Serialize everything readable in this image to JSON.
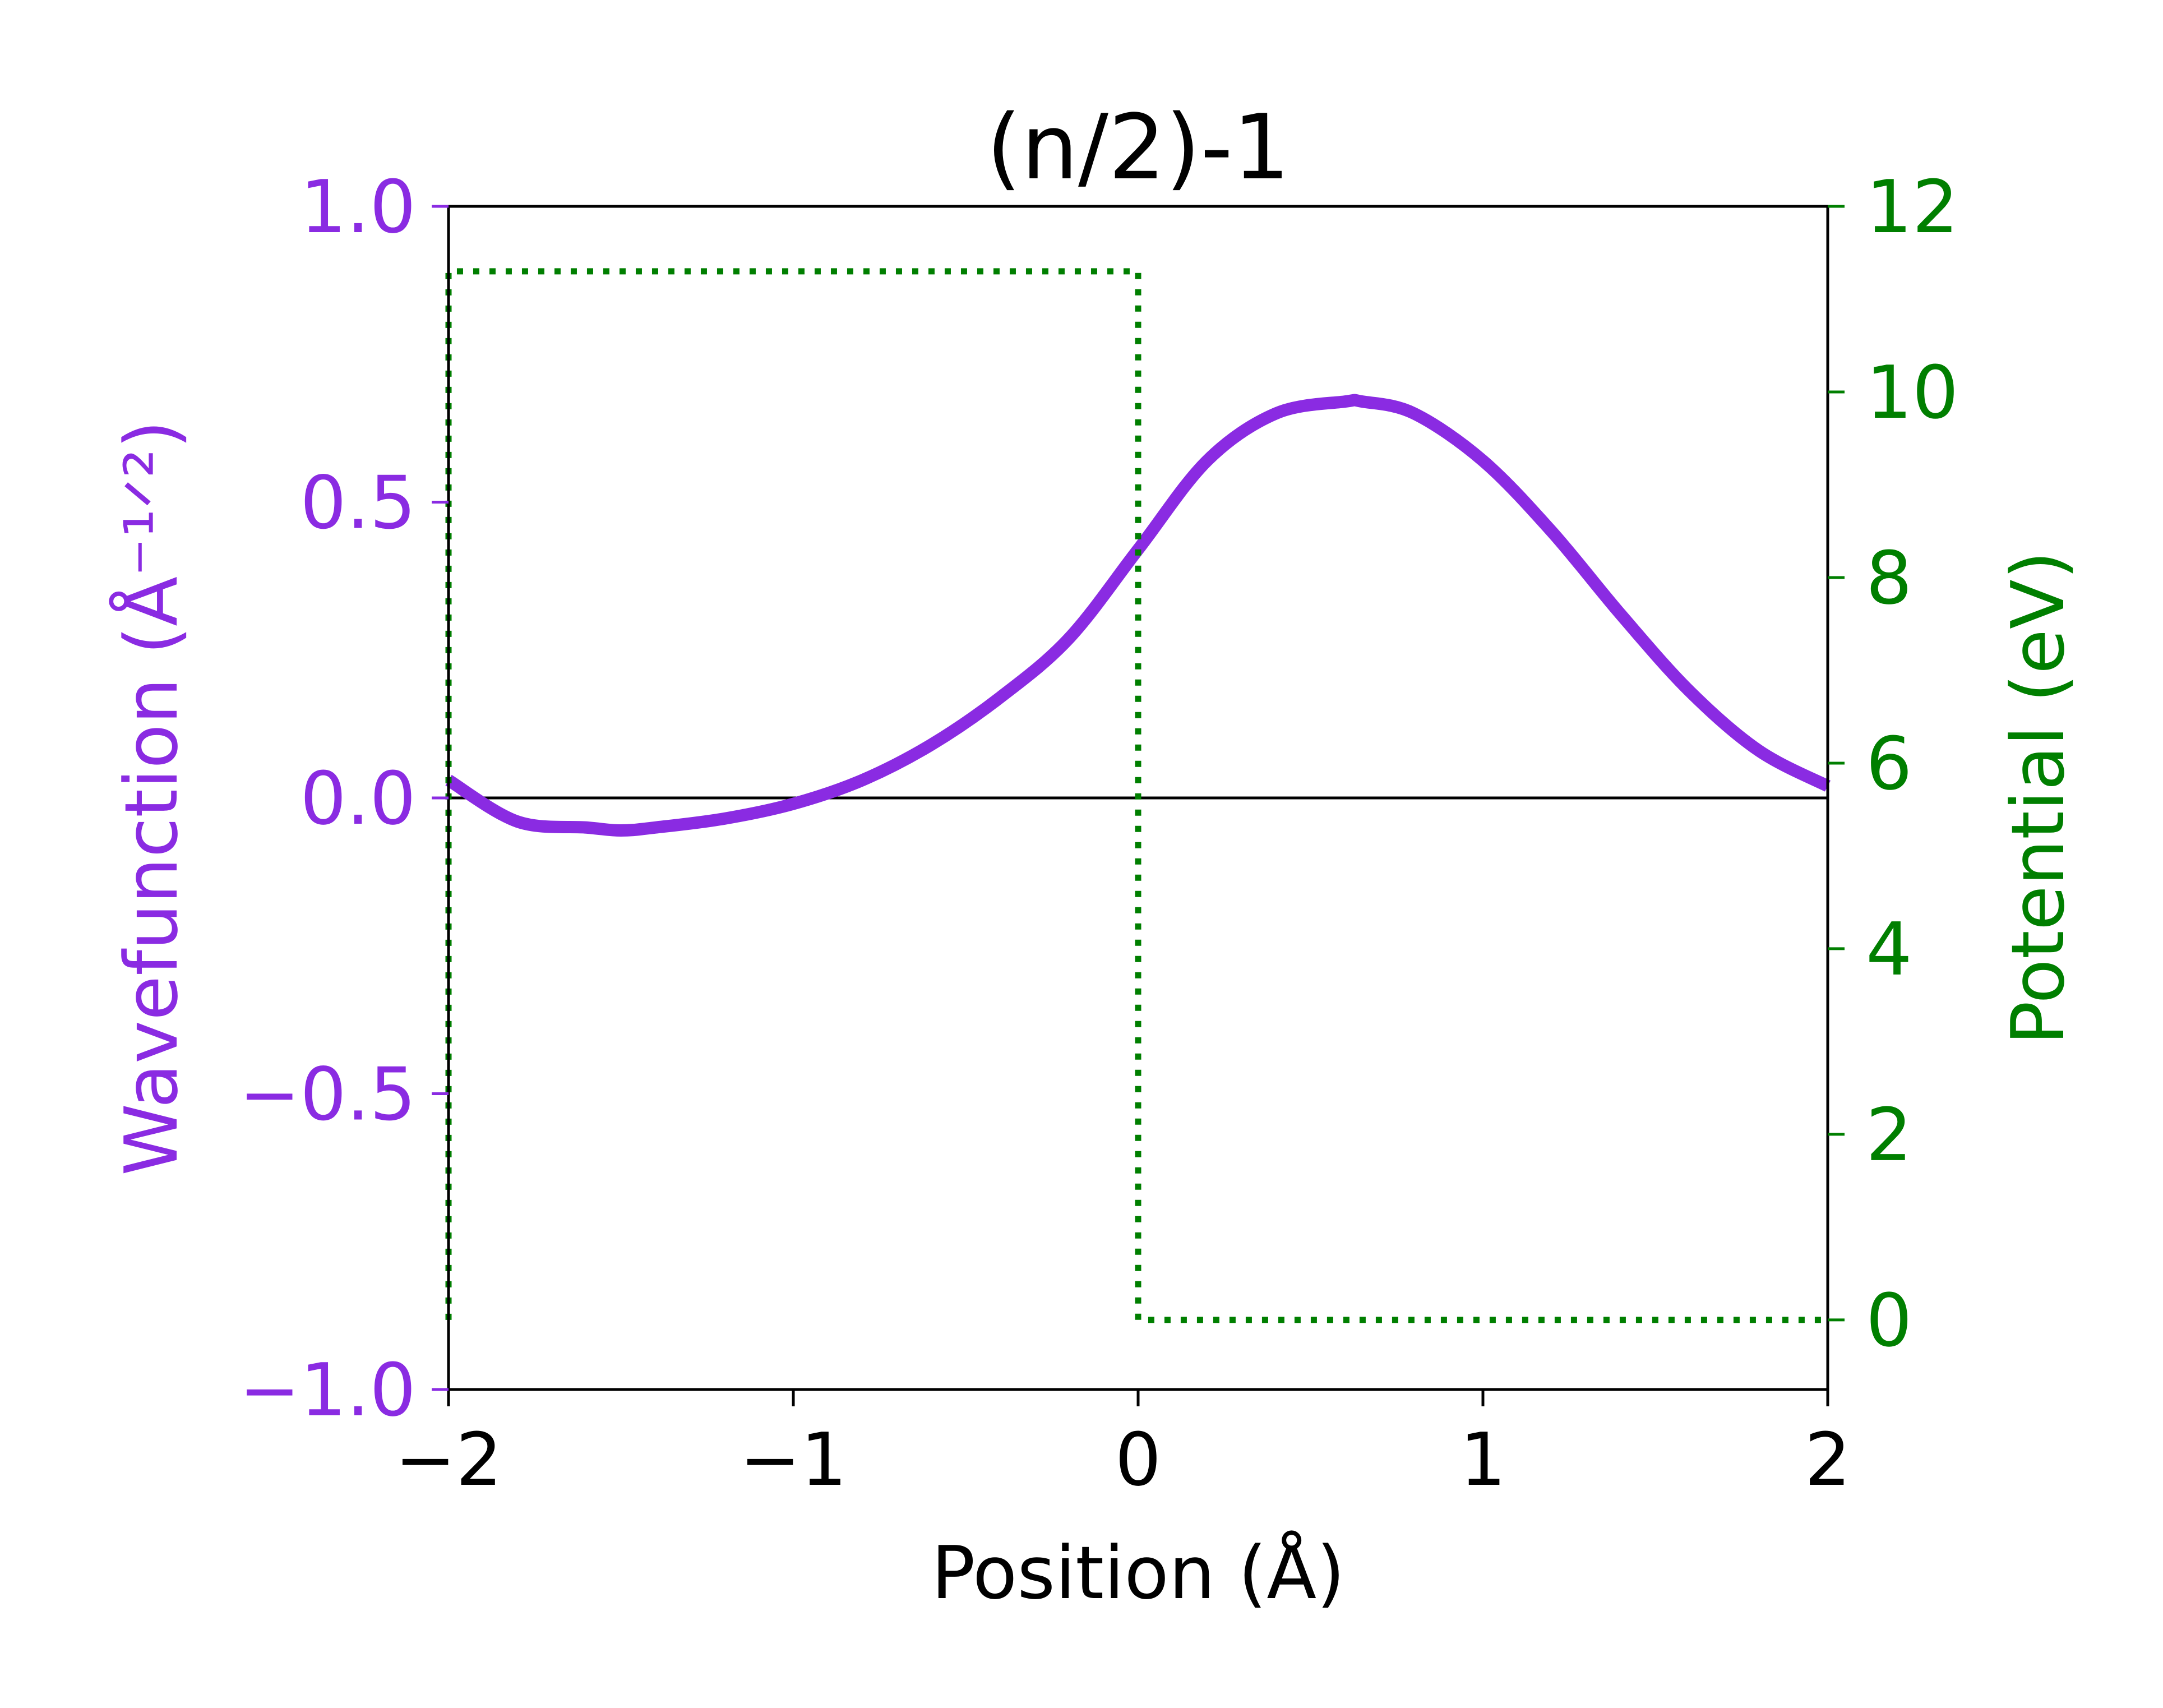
{
  "chart_data": {
    "type": "line",
    "title": "(n/2)-1",
    "xlabel": "Position (Å)",
    "ylabel": "Wavefunction (Å⁻¹ᐟ²)",
    "ylabel_right": "Potential (eV)",
    "xlim": [
      -2,
      2
    ],
    "ylim": [
      -1.0,
      1.0
    ],
    "ylim_right": [
      -0.75,
      12
    ],
    "x_ticks": [
      -2,
      -1,
      0,
      1,
      2
    ],
    "x_tick_labels": [
      "−2",
      "−1",
      "0",
      "1",
      "2"
    ],
    "y_ticks": [
      -1.0,
      -0.5,
      0.0,
      0.5,
      1.0
    ],
    "y_tick_labels": [
      "−1.0",
      "−0.5",
      "0.0",
      "0.5",
      "1.0"
    ],
    "y_right_ticks": [
      0,
      2,
      4,
      6,
      8,
      10,
      12
    ],
    "y_right_tick_labels": [
      "0",
      "2",
      "4",
      "6",
      "8",
      "10",
      "12"
    ],
    "zero_line": 0.0,
    "grid": false,
    "colors": {
      "wavefunction": "#8a2be2",
      "potential": "#007f00",
      "axes": "#000000"
    },
    "series": [
      {
        "axis": "left",
        "style": "solid",
        "x": [
          -2.0,
          -1.8,
          -1.6,
          -1.5,
          -1.4,
          -1.2,
          -1.0,
          -0.8,
          -0.6,
          -0.4,
          -0.2,
          0.0,
          0.2,
          0.4,
          0.6,
          0.65,
          0.8,
          1.0,
          1.2,
          1.4,
          1.6,
          1.8,
          2.0
        ],
        "values": [
          0.03,
          -0.04,
          -0.05,
          -0.055,
          -0.05,
          -0.035,
          -0.01,
          0.03,
          0.09,
          0.17,
          0.27,
          0.42,
          0.57,
          0.65,
          0.67,
          0.67,
          0.65,
          0.57,
          0.45,
          0.31,
          0.18,
          0.08,
          0.02
        ]
      },
      {
        "axis": "right",
        "style": "dotted",
        "x": [
          -2.0,
          -2.0,
          0.0,
          0.0,
          2.0
        ],
        "values": [
          0.0,
          11.3,
          11.3,
          0.0,
          0.0
        ]
      }
    ]
  }
}
